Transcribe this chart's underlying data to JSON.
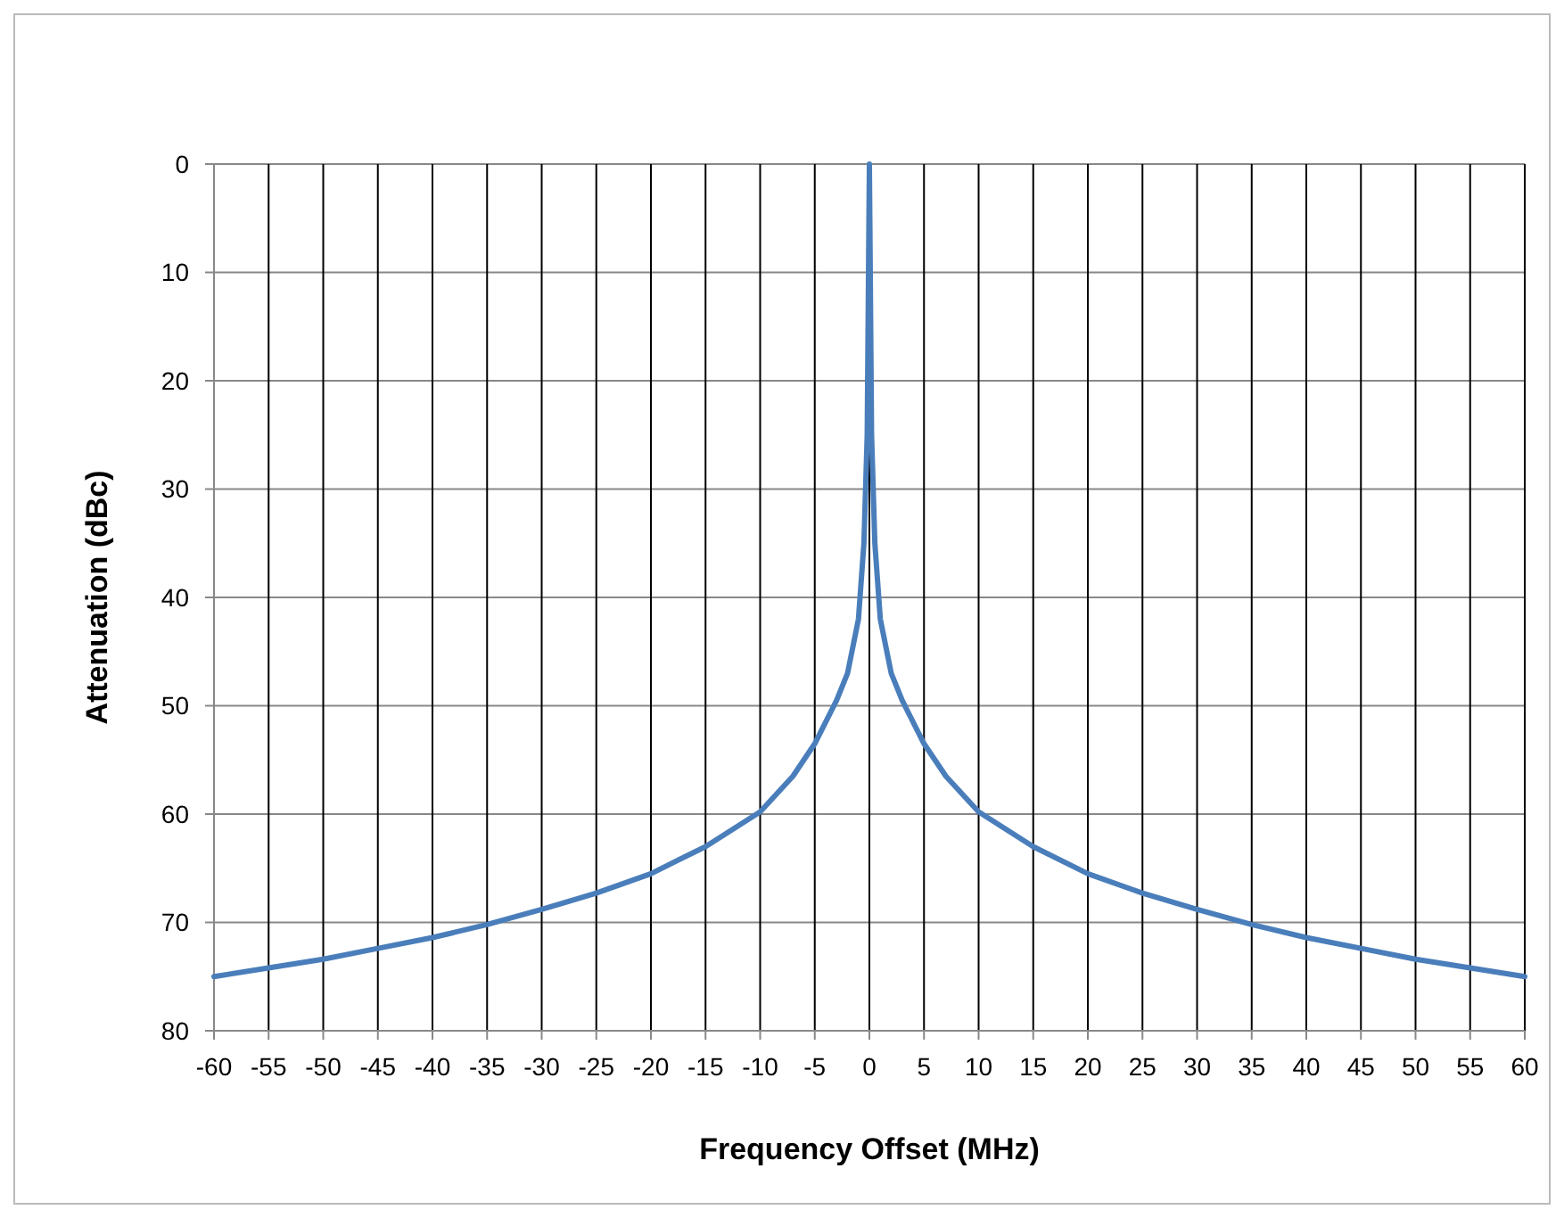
{
  "chart_data": {
    "type": "line",
    "xlabel": "Frequency Offset (MHz)",
    "ylabel": "Attenuation (dBc)",
    "xlim": [
      -60,
      60
    ],
    "xticks": [
      -60,
      -55,
      -50,
      -45,
      -40,
      -35,
      -30,
      -25,
      -20,
      -15,
      -10,
      -5,
      0,
      5,
      10,
      15,
      20,
      25,
      30,
      35,
      40,
      45,
      50,
      55,
      60
    ],
    "ylim": [
      80,
      0
    ],
    "yticks": [
      0,
      10,
      20,
      30,
      40,
      50,
      60,
      70,
      80
    ],
    "grid": true,
    "marker": "none",
    "line_style": "solid",
    "series": [
      {
        "color": "#4a7ebb",
        "x": [
          -60,
          -55,
          -50,
          -45,
          -40,
          -35,
          -30,
          -25,
          -20,
          -15,
          -10,
          -7,
          -5,
          -3,
          -2,
          -1,
          -0.5,
          -0.2,
          0,
          0.2,
          0.5,
          1,
          2,
          3,
          5,
          7,
          10,
          15,
          20,
          25,
          30,
          35,
          40,
          45,
          50,
          55,
          60
        ],
        "values": [
          75,
          74.2,
          73.4,
          72.4,
          71.4,
          70.2,
          68.8,
          67.3,
          65.5,
          63,
          59.8,
          56.5,
          53.5,
          49.5,
          47,
          42,
          35,
          25,
          0,
          25,
          35,
          42,
          47,
          49.5,
          53.5,
          56.5,
          59.8,
          63,
          65.5,
          67.3,
          68.8,
          70.2,
          71.4,
          72.4,
          73.4,
          74.2,
          75
        ]
      }
    ]
  }
}
